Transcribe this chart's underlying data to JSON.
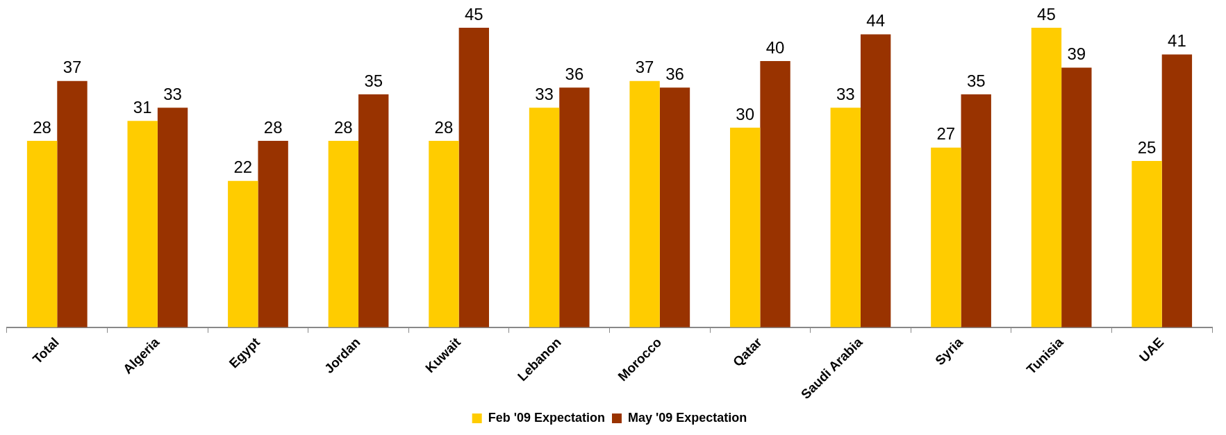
{
  "chart_data": {
    "type": "bar",
    "categories": [
      "Total",
      "Algeria",
      "Egypt",
      "Jordan",
      "Kuwait",
      "Lebanon",
      "Morocco",
      "Qatar",
      "Saudi Arabia",
      "Syria",
      "Tunisia",
      "UAE"
    ],
    "series": [
      {
        "name": "Feb '09 Expectation",
        "color": "#ffcc00",
        "values": [
          28,
          31,
          22,
          28,
          28,
          33,
          37,
          30,
          33,
          27,
          45,
          25
        ]
      },
      {
        "name": "May '09 Expectation",
        "color": "#993300",
        "values": [
          37,
          33,
          28,
          35,
          45,
          36,
          36,
          40,
          44,
          35,
          39,
          41
        ]
      }
    ],
    "data_labels": true,
    "legend": "bottom",
    "grid": false
  }
}
